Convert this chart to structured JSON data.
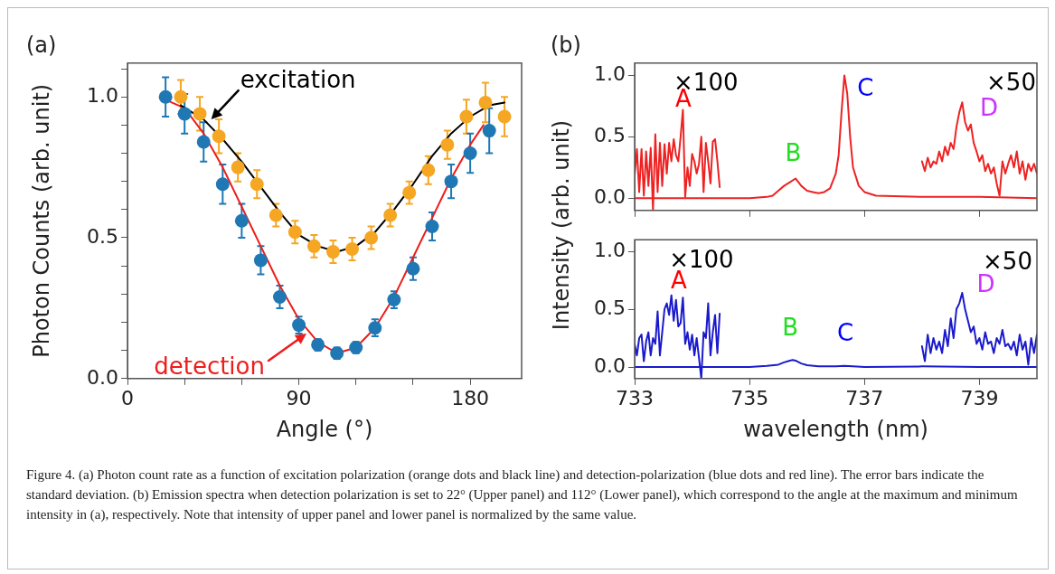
{
  "chart_data": [
    {
      "type": "scatter",
      "title": "(a)",
      "xlabel": "Angle (°)",
      "ylabel": "Photon Counts (arb. unit)",
      "xlim": [
        0,
        207
      ],
      "ylim": [
        0,
        1.12
      ],
      "xticks": [
        0,
        {
          "value": 30,
          "label": null
        },
        {
          "value": 60,
          "label": null
        },
        90,
        {
          "value": 120,
          "label": null
        },
        {
          "value": 150,
          "label": null
        },
        180
      ],
      "yticks": [
        {
          "value": 0,
          "label": "0.0"
        },
        {
          "value": 0.1,
          "label": null
        },
        {
          "value": 0.2,
          "label": null
        },
        {
          "value": 0.3,
          "label": null
        },
        {
          "value": 0.4,
          "label": null
        },
        {
          "value": 0.5,
          "label": "0.5"
        },
        {
          "value": 0.6,
          "label": null
        },
        {
          "value": 0.7,
          "label": null
        },
        {
          "value": 0.8,
          "label": null
        },
        {
          "value": 0.9,
          "label": null
        },
        {
          "value": 1,
          "label": "1.0"
        },
        {
          "value": 1.1,
          "label": null
        }
      ],
      "series": [
        {
          "marker": "circle",
          "color": "#f5a623",
          "x": [
            28,
            38,
            48,
            58,
            68,
            78,
            88,
            98,
            108,
            118,
            128,
            138,
            148,
            158,
            168,
            178,
            188,
            198
          ],
          "values": [
            1.0,
            0.94,
            0.86,
            0.75,
            0.69,
            0.58,
            0.52,
            0.47,
            0.45,
            0.46,
            0.5,
            0.58,
            0.66,
            0.74,
            0.83,
            0.93,
            0.98,
            0.93
          ],
          "errors": [
            0.06,
            0.06,
            0.06,
            0.05,
            0.05,
            0.04,
            0.04,
            0.04,
            0.04,
            0.04,
            0.04,
            0.04,
            0.04,
            0.05,
            0.05,
            0.06,
            0.07,
            0.07
          ]
        },
        {
          "marker": "circle",
          "color": "#1f77b4",
          "x": [
            20,
            30,
            40,
            50,
            60,
            70,
            80,
            90,
            100,
            110,
            120,
            130,
            140,
            150,
            160,
            170,
            180,
            190
          ],
          "values": [
            1.0,
            0.94,
            0.84,
            0.69,
            0.56,
            0.42,
            0.29,
            0.19,
            0.12,
            0.09,
            0.11,
            0.18,
            0.28,
            0.39,
            0.54,
            0.7,
            0.8,
            0.88
          ],
          "errors": [
            0.07,
            0.07,
            0.07,
            0.07,
            0.06,
            0.05,
            0.04,
            0.03,
            0.02,
            0.02,
            0.02,
            0.03,
            0.03,
            0.04,
            0.05,
            0.06,
            0.07,
            0.08
          ]
        },
        {
          "type": "line",
          "color": "#000000",
          "x": [
            28,
            40,
            50,
            60,
            70,
            80,
            90,
            100,
            110,
            120,
            130,
            140,
            150,
            160,
            170,
            180,
            190,
            198
          ],
          "values": [
            0.97,
            0.92,
            0.85,
            0.77,
            0.68,
            0.59,
            0.51,
            0.47,
            0.45,
            0.47,
            0.52,
            0.6,
            0.69,
            0.79,
            0.87,
            0.93,
            0.97,
            0.98
          ]
        },
        {
          "type": "line",
          "color": "#ee1c1c",
          "x": [
            20,
            30,
            40,
            50,
            60,
            70,
            80,
            90,
            100,
            110,
            120,
            130,
            140,
            150,
            160,
            170,
            180,
            187
          ],
          "values": [
            0.99,
            0.96,
            0.87,
            0.75,
            0.61,
            0.47,
            0.33,
            0.21,
            0.13,
            0.09,
            0.11,
            0.18,
            0.29,
            0.43,
            0.57,
            0.71,
            0.83,
            0.9
          ]
        }
      ],
      "annotations": [
        {
          "text": "excitation",
          "x": 44,
          "y": 0.92
        },
        {
          "text": "detection",
          "x": 94,
          "y": 0.16
        },
        "Figure 4. (a) Photon count rate as a function of excitation polarization (orange dots and black line) and detection-polarization (blue dots and red line). The error bars indicate the standard deviation. (b) Emission spectra when detection polarization is set to 22° (Upper panel) and 112° (Lower panel), which correspond to the angle at the maximum and minimum intensity in (a), respectively. Note that intensity of upper panel and lower panel is normalized by the same value."
      ]
    },
    {
      "type": "line",
      "title": "(b)",
      "ylabel": "Intensity (arb. unit)",
      "xlim": [
        733,
        740
      ],
      "ylim": [
        -0.1,
        1.1
      ],
      "tick_labels": "y",
      "xticks": [
        733,
        735,
        737,
        739
      ],
      "yticks": [
        {
          "value": 0,
          "label": "0.0"
        },
        {
          "value": 0.5,
          "label": "0.5"
        },
        {
          "value": 1,
          "label": "1.0"
        }
      ],
      "series": [
        {
          "color": "#ee2222",
          "x": [
            733,
            733.5,
            734,
            734.5,
            735,
            735.3,
            735.4,
            735.5,
            735.6,
            735.7,
            735.8,
            735.9,
            736,
            736.1,
            736.2,
            736.3,
            736.4,
            736.5,
            736.55,
            736.6,
            736.65,
            736.7,
            736.75,
            736.8,
            736.9,
            737,
            737.2,
            738,
            739,
            740
          ],
          "values": [
            0,
            0,
            0,
            0,
            0,
            0.01,
            0.02,
            0.06,
            0.1,
            0.13,
            0.16,
            0.1,
            0.06,
            0.05,
            0.04,
            0.05,
            0.08,
            0.2,
            0.35,
            0.7,
            1.0,
            0.85,
            0.5,
            0.25,
            0.1,
            0.05,
            0.02,
            0.01,
            0.01,
            0
          ]
        },
        {
          "color": "#ee2222",
          "x": [
            733,
            733.04,
            733.08,
            733.12,
            733.16,
            733.2,
            733.24,
            733.28,
            733.32,
            733.36,
            733.4,
            733.44,
            733.48,
            733.52,
            733.56,
            733.6,
            733.64,
            733.68,
            733.72,
            733.76,
            733.8,
            733.84,
            733.88,
            733.92,
            733.96,
            734,
            734.04,
            734.08,
            734.12,
            734.16,
            734.2,
            734.24,
            734.28,
            734.32,
            734.36,
            734.4,
            734.44,
            734.48
          ],
          "values": [
            0.18,
            0.4,
            0.05,
            0.4,
            0.02,
            0.38,
            0.1,
            0.41,
            -0.1,
            0.52,
            0.05,
            0.45,
            0.1,
            0.44,
            0.2,
            0.45,
            0.3,
            0.48,
            0.35,
            0.3,
            0.5,
            0.72,
            0.01,
            0.25,
            0.1,
            0.36,
            0.3,
            0.2,
            0.28,
            0.5,
            0.05,
            0.45,
            0.3,
            0.12,
            0.46,
            0.48,
            0.3,
            0.09
          ]
        },
        {
          "color": "#ee2222",
          "x": [
            738,
            738.05,
            738.1,
            738.15,
            738.2,
            738.25,
            738.3,
            738.35,
            738.4,
            738.45,
            738.5,
            738.55,
            738.6,
            738.65,
            738.7,
            738.75,
            738.8,
            738.85,
            738.9,
            738.95,
            739,
            739.05,
            739.1,
            739.15,
            739.2,
            739.25,
            739.3,
            739.35,
            739.4,
            739.45,
            739.5,
            739.55,
            739.6,
            739.65,
            739.7,
            739.75,
            739.8,
            739.85,
            739.9,
            739.95,
            740
          ],
          "values": [
            0.3,
            0.22,
            0.33,
            0.25,
            0.3,
            0.28,
            0.38,
            0.3,
            0.42,
            0.35,
            0.45,
            0.4,
            0.58,
            0.7,
            0.78,
            0.62,
            0.55,
            0.6,
            0.45,
            0.38,
            0.3,
            0.35,
            0.22,
            0.28,
            0.2,
            0.25,
            0.12,
            0.02,
            0.3,
            0.2,
            0.28,
            0.35,
            0.25,
            0.38,
            0.2,
            0.3,
            0.15,
            0.28,
            0.22,
            0.28,
            0.2
          ]
        }
      ],
      "annotations": [
        "×100",
        "A",
        "B",
        "C",
        "×50",
        "D"
      ]
    },
    {
      "type": "line",
      "xlabel": "wavelength (nm)",
      "xlim": [
        733,
        740
      ],
      "ylim": [
        -0.1,
        1.1
      ],
      "xticks": [
        733,
        735,
        737,
        739
      ],
      "yticks": [
        {
          "value": 0,
          "label": "0.0"
        },
        {
          "value": 0.5,
          "label": "0.5"
        },
        {
          "value": 1,
          "label": "1.0"
        }
      ],
      "series": [
        {
          "color": "#1a1acc",
          "x": [
            733,
            733.5,
            734,
            734.5,
            735,
            735.3,
            735.5,
            735.6,
            735.7,
            735.75,
            735.8,
            735.9,
            736,
            736.2,
            736.5,
            736.65,
            736.8,
            737,
            738,
            739,
            740
          ],
          "values": [
            0,
            0,
            0,
            0,
            0,
            0.01,
            0.02,
            0.04,
            0.055,
            0.06,
            0.055,
            0.03,
            0.015,
            0.005,
            0.005,
            0.01,
            0.005,
            0,
            0.005,
            0,
            0
          ]
        },
        {
          "color": "#1a1acc",
          "x": [
            733,
            733.04,
            733.08,
            733.12,
            733.16,
            733.2,
            733.24,
            733.28,
            733.32,
            733.36,
            733.4,
            733.44,
            733.48,
            733.52,
            733.56,
            733.6,
            733.64,
            733.68,
            733.72,
            733.76,
            733.8,
            733.84,
            733.88,
            733.92,
            733.96,
            734,
            734.04,
            734.08,
            734.12,
            734.16,
            734.2,
            734.24,
            734.28,
            734.32,
            734.36,
            734.4,
            734.44,
            734.48
          ],
          "values": [
            0.2,
            0.1,
            0.25,
            0.28,
            0.05,
            0.22,
            0.3,
            0.1,
            0.25,
            0.2,
            0.48,
            0.1,
            0.3,
            0.5,
            0.55,
            0.45,
            0.62,
            0.4,
            0.58,
            0.35,
            0.38,
            0.6,
            0.2,
            0.3,
            0.15,
            0.28,
            0.1,
            0.25,
            0.08,
            -0.1,
            0.3,
            0.25,
            0.55,
            0.1,
            0.3,
            0.45,
            0.12,
            0.46
          ]
        },
        {
          "color": "#1a1acc",
          "x": [
            738,
            738.05,
            738.1,
            738.15,
            738.2,
            738.25,
            738.3,
            738.35,
            738.4,
            738.45,
            738.5,
            738.55,
            738.6,
            738.65,
            738.7,
            738.75,
            738.8,
            738.85,
            738.9,
            738.95,
            739,
            739.05,
            739.1,
            739.15,
            739.2,
            739.25,
            739.3,
            739.35,
            739.4,
            739.45,
            739.5,
            739.55,
            739.6,
            739.65,
            739.7,
            739.75,
            739.8,
            739.85,
            739.9,
            739.95,
            740
          ],
          "values": [
            0.18,
            0.05,
            0.28,
            0.12,
            0.25,
            0.15,
            0.22,
            0.12,
            0.32,
            0.18,
            0.42,
            0.25,
            0.5,
            0.55,
            0.64,
            0.5,
            0.4,
            0.3,
            0.35,
            0.2,
            0.25,
            0.15,
            0.3,
            0.2,
            0.22,
            0.12,
            0.25,
            0.2,
            0.32,
            0.18,
            0.2,
            0.15,
            0.22,
            0.1,
            0.28,
            0.15,
            0.22,
            0.02,
            0.25,
            0.12,
            0.28
          ]
        }
      ],
      "annotations": [
        "×100",
        "A",
        "B",
        "C",
        "×50",
        "D"
      ]
    }
  ]
}
